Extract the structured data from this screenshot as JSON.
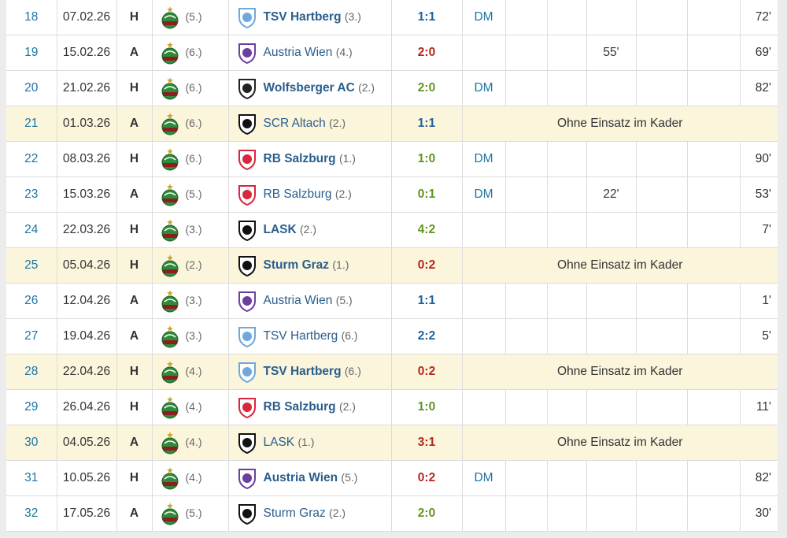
{
  "table": {
    "rows": [
      {
        "matchday": "18",
        "date": "07.02.26",
        "venue": "H",
        "rank": "(5.)",
        "opponent": "TSV Hartberg",
        "opponent_rank": "(3.)",
        "opponent_bold": true,
        "logo_color": "#6fa8dc",
        "result": "1:1",
        "result_color": "#1d5f9a",
        "position": "DM",
        "sub_minute": null,
        "minutes": "72'",
        "note": null
      },
      {
        "matchday": "19",
        "date": "15.02.26",
        "venue": "A",
        "rank": "(6.)",
        "opponent": "Austria Wien",
        "opponent_rank": "(4.)",
        "opponent_bold": false,
        "logo_color": "#6b3fa0",
        "result": "2:0",
        "result_color": "#b3251e",
        "position": null,
        "sub_minute": "55'",
        "minutes": "69'",
        "note": null
      },
      {
        "matchday": "20",
        "date": "21.02.26",
        "venue": "H",
        "rank": "(6.)",
        "opponent": "Wolfsberger AC",
        "opponent_rank": "(2.)",
        "opponent_bold": true,
        "logo_color": "#222222",
        "result": "2:0",
        "result_color": "#5f9420",
        "position": "DM",
        "sub_minute": null,
        "minutes": "82'",
        "note": null
      },
      {
        "matchday": "21",
        "date": "01.03.26",
        "venue": "A",
        "rank": "(6.)",
        "opponent": "SCR Altach",
        "opponent_rank": "(2.)",
        "opponent_bold": false,
        "logo_color": "#111111",
        "result": "1:1",
        "result_color": "#1d5f9a",
        "position": null,
        "sub_minute": null,
        "minutes": null,
        "note": "Ohne Einsatz im Kader"
      },
      {
        "matchday": "22",
        "date": "08.03.26",
        "venue": "H",
        "rank": "(6.)",
        "opponent": "RB Salzburg",
        "opponent_rank": "(1.)",
        "opponent_bold": true,
        "logo_color": "#d7263d",
        "result": "1:0",
        "result_color": "#5f9420",
        "position": "DM",
        "sub_minute": null,
        "minutes": "90'",
        "note": null
      },
      {
        "matchday": "23",
        "date": "15.03.26",
        "venue": "A",
        "rank": "(5.)",
        "opponent": "RB Salzburg",
        "opponent_rank": "(2.)",
        "opponent_bold": false,
        "logo_color": "#d7263d",
        "result": "0:1",
        "result_color": "#5f9420",
        "position": "DM",
        "sub_minute": "22'",
        "minutes": "53'",
        "note": null
      },
      {
        "matchday": "24",
        "date": "22.03.26",
        "venue": "H",
        "rank": "(3.)",
        "opponent": "LASK",
        "opponent_rank": "(2.)",
        "opponent_bold": true,
        "logo_color": "#111111",
        "result": "4:2",
        "result_color": "#5f9420",
        "position": null,
        "sub_minute": null,
        "minutes": "7'",
        "note": null
      },
      {
        "matchday": "25",
        "date": "05.04.26",
        "venue": "H",
        "rank": "(2.)",
        "opponent": "Sturm Graz",
        "opponent_rank": "(1.)",
        "opponent_bold": true,
        "logo_color": "#111111",
        "result": "0:2",
        "result_color": "#b3251e",
        "position": null,
        "sub_minute": null,
        "minutes": null,
        "note": "Ohne Einsatz im Kader"
      },
      {
        "matchday": "26",
        "date": "12.04.26",
        "venue": "A",
        "rank": "(3.)",
        "opponent": "Austria Wien",
        "opponent_rank": "(5.)",
        "opponent_bold": false,
        "logo_color": "#6b3fa0",
        "result": "1:1",
        "result_color": "#1d5f9a",
        "position": null,
        "sub_minute": null,
        "minutes": "1'",
        "note": null
      },
      {
        "matchday": "27",
        "date": "19.04.26",
        "venue": "A",
        "rank": "(3.)",
        "opponent": "TSV Hartberg",
        "opponent_rank": "(6.)",
        "opponent_bold": false,
        "logo_color": "#6fa8dc",
        "result": "2:2",
        "result_color": "#1d5f9a",
        "position": null,
        "sub_minute": null,
        "minutes": "5'",
        "note": null
      },
      {
        "matchday": "28",
        "date": "22.04.26",
        "venue": "H",
        "rank": "(4.)",
        "opponent": "TSV Hartberg",
        "opponent_rank": "(6.)",
        "opponent_bold": true,
        "logo_color": "#6fa8dc",
        "result": "0:2",
        "result_color": "#b3251e",
        "position": null,
        "sub_minute": null,
        "minutes": null,
        "note": "Ohne Einsatz im Kader"
      },
      {
        "matchday": "29",
        "date": "26.04.26",
        "venue": "H",
        "rank": "(4.)",
        "opponent": "RB Salzburg",
        "opponent_rank": "(2.)",
        "opponent_bold": true,
        "logo_color": "#d7263d",
        "result": "1:0",
        "result_color": "#5f9420",
        "position": null,
        "sub_minute": null,
        "minutes": "11'",
        "note": null
      },
      {
        "matchday": "30",
        "date": "04.05.26",
        "venue": "A",
        "rank": "(4.)",
        "opponent": "LASK",
        "opponent_rank": "(1.)",
        "opponent_bold": false,
        "logo_color": "#111111",
        "result": "3:1",
        "result_color": "#b3251e",
        "position": null,
        "sub_minute": null,
        "minutes": null,
        "note": "Ohne Einsatz im Kader"
      },
      {
        "matchday": "31",
        "date": "10.05.26",
        "venue": "H",
        "rank": "(4.)",
        "opponent": "Austria Wien",
        "opponent_rank": "(5.)",
        "opponent_bold": true,
        "logo_color": "#6b3fa0",
        "result": "0:2",
        "result_color": "#b3251e",
        "position": "DM",
        "sub_minute": null,
        "minutes": "82'",
        "note": null
      },
      {
        "matchday": "32",
        "date": "17.05.26",
        "venue": "A",
        "rank": "(5.)",
        "opponent": "Sturm Graz",
        "opponent_rank": "(2.)",
        "opponent_bold": false,
        "logo_color": "#111111",
        "result": "2:0",
        "result_color": "#5f9420",
        "position": null,
        "sub_minute": null,
        "minutes": "30'",
        "note": null
      }
    ]
  }
}
